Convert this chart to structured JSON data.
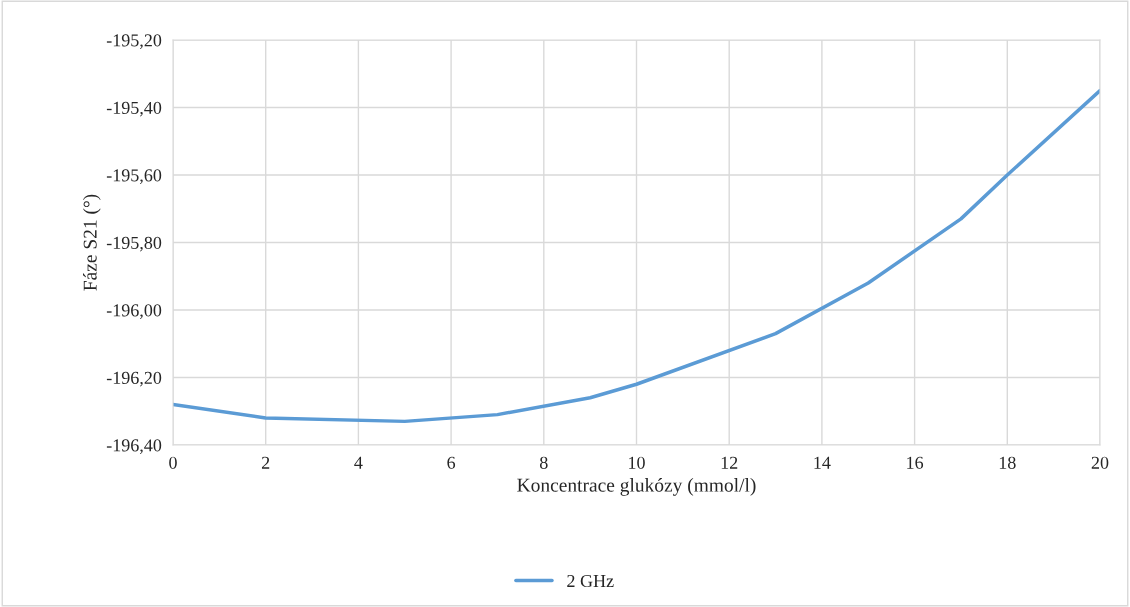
{
  "chart_data": {
    "type": "line",
    "xlabel": "Koncentrace glukózy (mmol/l)",
    "ylabel": "Fáze S21 (°)",
    "x": [
      0,
      2,
      5,
      7,
      9,
      10,
      13,
      15,
      17,
      18,
      20
    ],
    "series": [
      {
        "name": "2 GHz",
        "color": "#5b9bd5",
        "values": [
          -196.28,
          -196.32,
          -196.33,
          -196.31,
          -196.26,
          -196.22,
          -196.07,
          -195.92,
          -195.73,
          -195.6,
          -195.35
        ]
      }
    ],
    "xlim": [
      0,
      20
    ],
    "xticks": [
      0,
      2,
      4,
      6,
      8,
      10,
      12,
      14,
      16,
      18,
      20
    ],
    "ylim": [
      -196.4,
      -195.2
    ],
    "yticks": [
      {
        "value": -196.4,
        "label": "-196,40"
      },
      {
        "value": -196.2,
        "label": "-196,20"
      },
      {
        "value": -196.0,
        "label": "-196,00"
      },
      {
        "value": -195.8,
        "label": "-195,80"
      },
      {
        "value": -195.6,
        "label": "-195,60"
      },
      {
        "value": -195.4,
        "label": "-195,40"
      },
      {
        "value": -195.2,
        "label": "-195,20"
      }
    ],
    "grid": true,
    "legend": "bottom",
    "marker": "none",
    "line_style": "solid"
  }
}
